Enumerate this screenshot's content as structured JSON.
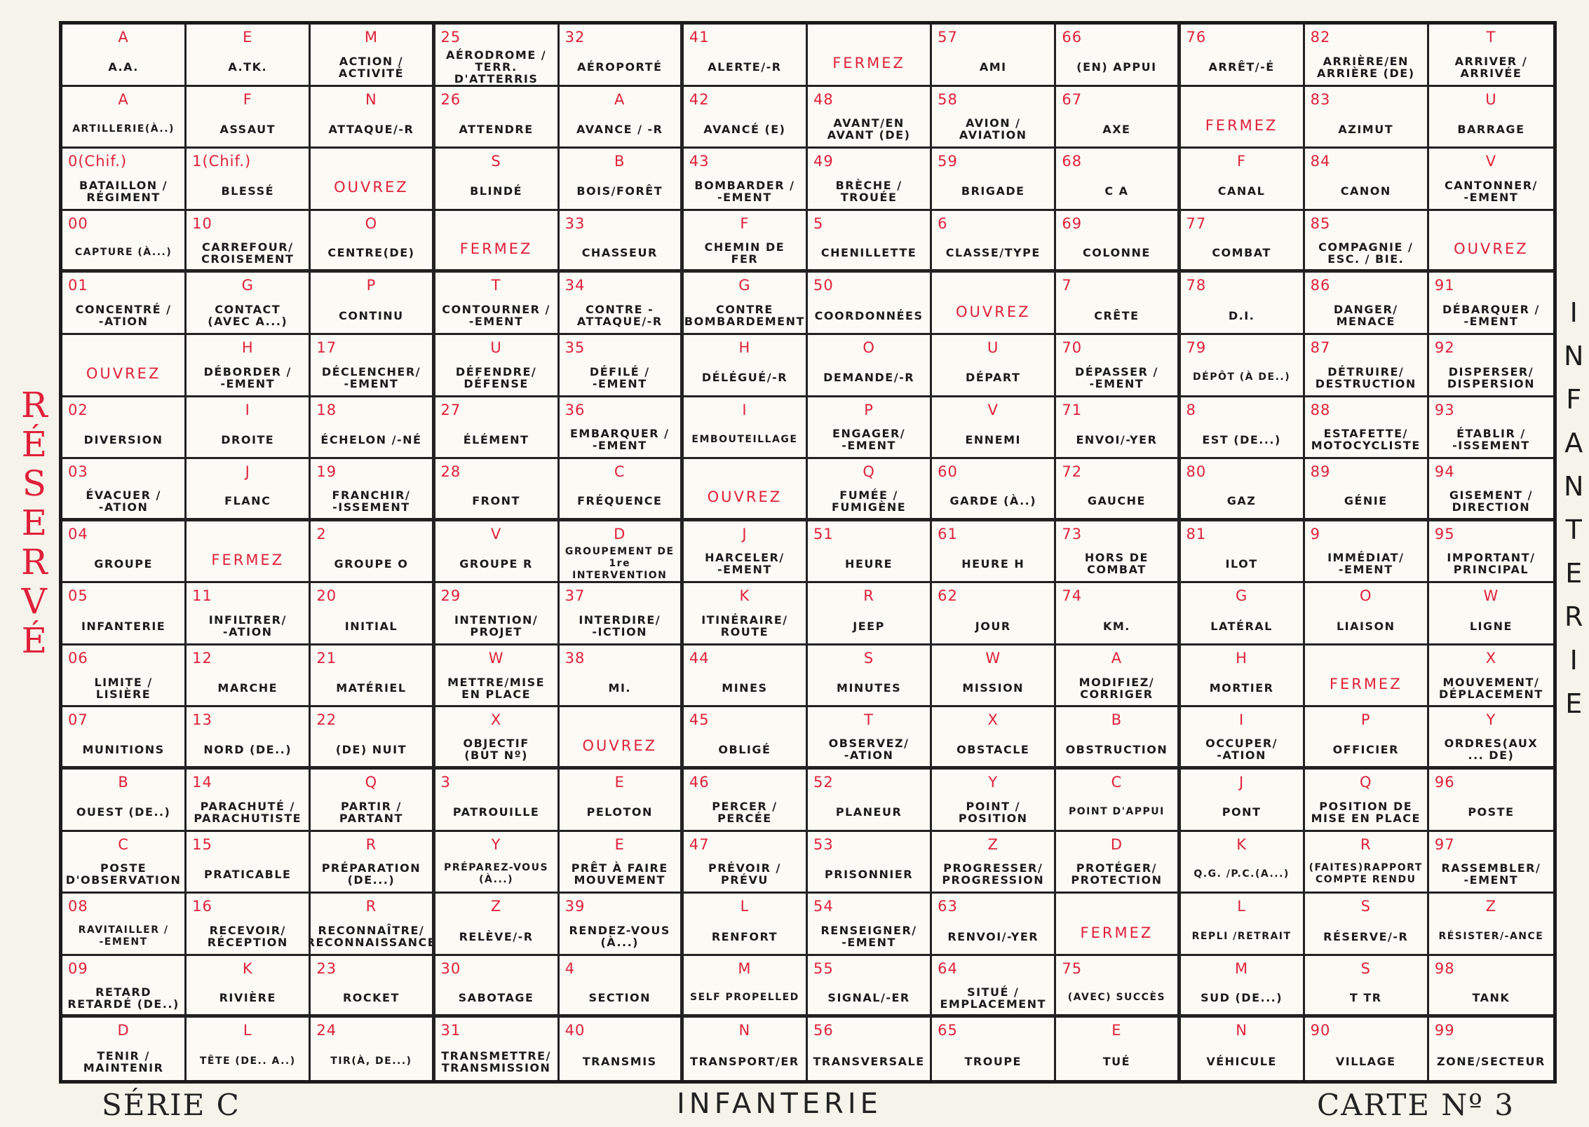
{
  "side_left": "RÉSERVÉ",
  "side_right": "INFANTERIE",
  "footer": {
    "serie": "SÉRIE C",
    "arm": "INFANTERIE",
    "card": "CARTE Nº 3"
  },
  "colors": {
    "code": "#e0203a",
    "text": "#1b1b1b",
    "paper": "#f6f3ea"
  },
  "rows": [
    [
      {
        "c": "A",
        "t": "A.A."
      },
      {
        "c": "E",
        "t": "A.TK."
      },
      {
        "c": "M",
        "t": "ACTION /\nACTIVITÉ"
      },
      {
        "c": "25",
        "t": "AÉRODROME /\nTERR. D'ATTERRIS"
      },
      {
        "c": "32",
        "t": "AÉROPORTÉ"
      },
      {
        "c": "41",
        "t": "ALERTE/-R"
      },
      {
        "r": "FERMEZ"
      },
      {
        "c": "57",
        "t": "AMI"
      },
      {
        "c": "66",
        "t": "(EN) APPUI"
      },
      {
        "c": "76",
        "t": "ARRÊT/-É"
      },
      {
        "c": "82",
        "t": "ARRIÈRE/EN\nARRIÈRE (DE)"
      },
      {
        "c": "T",
        "t": "ARRIVER /\nARRIVÉE"
      }
    ],
    [
      {
        "c": "A",
        "t": "ARTILLERIE(À..)"
      },
      {
        "c": "F",
        "t": "ASSAUT"
      },
      {
        "c": "N",
        "t": "ATTAQUE/-R"
      },
      {
        "c": "26",
        "t": "ATTENDRE"
      },
      {
        "c": "A",
        "t": "AVANCE / -R"
      },
      {
        "c": "42",
        "t": "AVANCÉ (E)"
      },
      {
        "c": "48",
        "t": "AVANT/EN\nAVANT (DE)"
      },
      {
        "c": "58",
        "t": "AVION /\nAVIATION"
      },
      {
        "c": "67",
        "t": "AXE"
      },
      {
        "r": "FERMEZ"
      },
      {
        "c": "83",
        "t": "AZIMUT"
      },
      {
        "c": "U",
        "t": "BARRAGE"
      }
    ],
    [
      {
        "c": "0(Chif.)",
        "t": "BATAILLON /\nRÉGIMENT"
      },
      {
        "c": "1(Chif.)",
        "t": "BLESSÉ"
      },
      {
        "r": "OUVREZ"
      },
      {
        "c": "S",
        "t": "BLINDÉ"
      },
      {
        "c": "B",
        "t": "BOIS/FORÊT"
      },
      {
        "c": "43",
        "t": "BOMBARDER /\n-EMENT"
      },
      {
        "c": "49",
        "t": "BRÈCHE /\nTROUÉE"
      },
      {
        "c": "59",
        "t": "BRIGADE"
      },
      {
        "c": "68",
        "t": "C A"
      },
      {
        "c": "F",
        "t": "CANAL"
      },
      {
        "c": "84",
        "t": "CANON"
      },
      {
        "c": "V",
        "t": "CANTONNER/\n-EMENT"
      }
    ],
    [
      {
        "c": "00",
        "t": "CAPTURE (À...)"
      },
      {
        "c": "10",
        "t": "CARREFOUR/\nCROISEMENT"
      },
      {
        "c": "O",
        "t": "CENTRE(DE)"
      },
      {
        "r": "FERMEZ"
      },
      {
        "c": "33",
        "t": "CHASSEUR"
      },
      {
        "c": "F",
        "t": "CHEMIN DE\nFER"
      },
      {
        "c": "5",
        "t": "CHENILLETTE"
      },
      {
        "c": "6",
        "t": "CLASSE/TYPE"
      },
      {
        "c": "69",
        "t": "COLONNE"
      },
      {
        "c": "77",
        "t": "COMBAT"
      },
      {
        "c": "85",
        "t": "COMPAGNIE /\nESC. / BIE."
      },
      {
        "r": "OUVREZ"
      }
    ],
    [
      {
        "c": "01",
        "t": "CONCENTRÉ /\n-ATION"
      },
      {
        "c": "G",
        "t": "CONTACT\n(AVEC A...)"
      },
      {
        "c": "P",
        "t": "CONTINU"
      },
      {
        "c": "T",
        "t": "CONTOURNER /\n-EMENT"
      },
      {
        "c": "34",
        "t": "CONTRE -\nATTAQUE/-R"
      },
      {
        "c": "G",
        "t": "CONTRE\nBOMBARDEMENT"
      },
      {
        "c": "50",
        "t": "COORDONNÉES"
      },
      {
        "r": "OUVREZ"
      },
      {
        "c": "7",
        "t": "CRÊTE"
      },
      {
        "c": "78",
        "t": "D.I."
      },
      {
        "c": "86",
        "t": "DANGER/\nMENACE"
      },
      {
        "c": "91",
        "t": "DÉBARQUER /\n-EMENT"
      }
    ],
    [
      {
        "r": "OUVREZ"
      },
      {
        "c": "H",
        "t": "DÉBORDER /\n-EMENT"
      },
      {
        "c": "17",
        "t": "DÉCLENCHER/\n-EMENT"
      },
      {
        "c": "U",
        "t": "DÉFENDRE/\nDÉFENSE"
      },
      {
        "c": "35",
        "t": "DÉFILÉ /\n-EMENT"
      },
      {
        "c": "H",
        "t": "DÉLÉGUÉ/-R"
      },
      {
        "c": "O",
        "t": "DEMANDE/-R"
      },
      {
        "c": "U",
        "t": "DÉPART"
      },
      {
        "c": "70",
        "t": "DÉPASSER /\n-EMENT"
      },
      {
        "c": "79",
        "t": "DÉPÔT (À DE..)"
      },
      {
        "c": "87",
        "t": "DÉTRUIRE/\nDESTRUCTION"
      },
      {
        "c": "92",
        "t": "DISPERSER/\nDISPERSION"
      }
    ],
    [
      {
        "c": "02",
        "t": "DIVERSION"
      },
      {
        "c": "I",
        "t": "DROITE"
      },
      {
        "c": "18",
        "t": "ÉCHELON /-NÉ"
      },
      {
        "c": "27",
        "t": "ÉLÉMENT"
      },
      {
        "c": "36",
        "t": "EMBARQUER /\n-EMENT"
      },
      {
        "c": "I",
        "t": "EMBOUTEILLAGE"
      },
      {
        "c": "P",
        "t": "ENGAGER/\n-EMENT"
      },
      {
        "c": "V",
        "t": "ENNEMI"
      },
      {
        "c": "71",
        "t": "ENVOI/-YER"
      },
      {
        "c": "8",
        "t": "EST (DE...)"
      },
      {
        "c": "88",
        "t": "ESTAFETTE/\nMOTOCYCLISTE"
      },
      {
        "c": "93",
        "t": "ÉTABLIR /\n-ISSEMENT"
      }
    ],
    [
      {
        "c": "03",
        "t": "ÉVACUER /\n-ATION"
      },
      {
        "c": "J",
        "t": "FLANC"
      },
      {
        "c": "19",
        "t": "FRANCHIR/\n-ISSEMENT"
      },
      {
        "c": "28",
        "t": "FRONT"
      },
      {
        "c": "C",
        "t": "FRÉQUENCE"
      },
      {
        "r": "OUVREZ"
      },
      {
        "c": "Q",
        "t": "FUMÉE /\nFUMIGÈNE"
      },
      {
        "c": "60",
        "t": "GARDE (À..)"
      },
      {
        "c": "72",
        "t": "GAUCHE"
      },
      {
        "c": "80",
        "t": "GAZ"
      },
      {
        "c": "89",
        "t": "GÉNIE"
      },
      {
        "c": "94",
        "t": "GISEMENT /\nDIRECTION"
      }
    ],
    [
      {
        "c": "04",
        "t": "GROUPE"
      },
      {
        "r": "FERMEZ"
      },
      {
        "c": "2",
        "t": "GROUPE O"
      },
      {
        "c": "V",
        "t": "GROUPE R"
      },
      {
        "c": "D",
        "t": "GROUPEMENT DE\n1re INTERVENTION"
      },
      {
        "c": "J",
        "t": "HARCELER/\n-EMENT"
      },
      {
        "c": "51",
        "t": "HEURE"
      },
      {
        "c": "61",
        "t": "HEURE H"
      },
      {
        "c": "73",
        "t": "HORS DE\nCOMBAT"
      },
      {
        "c": "81",
        "t": "ILOT"
      },
      {
        "c": "9",
        "t": "IMMÉDIAT/\n-EMENT"
      },
      {
        "c": "95",
        "t": "IMPORTANT/\nPRINCIPAL"
      }
    ],
    [
      {
        "c": "05",
        "t": "INFANTERIE"
      },
      {
        "c": "11",
        "t": "INFILTRER/\n-ATION"
      },
      {
        "c": "20",
        "t": "INITIAL"
      },
      {
        "c": "29",
        "t": "INTENTION/\nPROJET"
      },
      {
        "c": "37",
        "t": "INTERDIRE/\n-ICTION"
      },
      {
        "c": "K",
        "t": "ITINÉRAIRE/\nROUTE"
      },
      {
        "c": "R",
        "t": "JEEP"
      },
      {
        "c": "62",
        "t": "JOUR"
      },
      {
        "c": "74",
        "t": "KM."
      },
      {
        "c": "G",
        "t": "LATÉRAL"
      },
      {
        "c": "O",
        "t": "LIAISON"
      },
      {
        "c": "W",
        "t": "LIGNE"
      }
    ],
    [
      {
        "c": "06",
        "t": "LIMITE /\nLISIÈRE"
      },
      {
        "c": "12",
        "t": "MARCHE"
      },
      {
        "c": "21",
        "t": "MATÉRIEL"
      },
      {
        "c": "W",
        "t": "METTRE/MISE\nEN PLACE"
      },
      {
        "c": "38",
        "t": "MI."
      },
      {
        "c": "44",
        "t": "MINES"
      },
      {
        "c": "S",
        "t": "MINUTES"
      },
      {
        "c": "W",
        "t": "MISSION"
      },
      {
        "c": "A",
        "t": "MODIFIEZ/\nCORRIGER"
      },
      {
        "c": "H",
        "t": "MORTIER"
      },
      {
        "r": "FERMEZ"
      },
      {
        "c": "X",
        "t": "MOUVEMENT/\nDÉPLACEMENT"
      }
    ],
    [
      {
        "c": "07",
        "t": "MUNITIONS"
      },
      {
        "c": "13",
        "t": "NORD (DE..)"
      },
      {
        "c": "22",
        "t": "(DE) NUIT"
      },
      {
        "c": "X",
        "t": "OBJECTIF\n(BUT Nº)"
      },
      {
        "r": "OUVREZ"
      },
      {
        "c": "45",
        "t": "OBLIGÉ"
      },
      {
        "c": "T",
        "t": "OBSERVEZ/\n-ATION"
      },
      {
        "c": "X",
        "t": "OBSTACLE"
      },
      {
        "c": "B",
        "t": "OBSTRUCTION"
      },
      {
        "c": "I",
        "t": "OCCUPER/\n-ATION"
      },
      {
        "c": "P",
        "t": "OFFICIER"
      },
      {
        "c": "Y",
        "t": "ORDRES(AUX\n... DE)"
      }
    ],
    [
      {
        "c": "B",
        "t": "OUEST (DE..)"
      },
      {
        "c": "14",
        "t": "PARACHUTÉ /\nPARACHUTISTE"
      },
      {
        "c": "Q",
        "t": "PARTIR /\nPARTANT"
      },
      {
        "c": "3",
        "t": "PATROUILLE"
      },
      {
        "c": "E",
        "t": "PELOTON"
      },
      {
        "c": "46",
        "t": "PERCER /\nPERCÉE"
      },
      {
        "c": "52",
        "t": "PLANEUR"
      },
      {
        "c": "Y",
        "t": "POINT /\nPOSITION"
      },
      {
        "c": "C",
        "t": "POINT D'APPUI"
      },
      {
        "c": "J",
        "t": "PONT"
      },
      {
        "c": "Q",
        "t": "POSITION DE\nMISE EN PLACE"
      },
      {
        "c": "96",
        "t": "POSTE"
      }
    ],
    [
      {
        "c": "C",
        "t": "POSTE\nD'OBSERVATION"
      },
      {
        "c": "15",
        "t": "PRATICABLE"
      },
      {
        "c": "R",
        "t": "PRÉPARATION\n(DE...)"
      },
      {
        "c": "Y",
        "t": "PRÉPAREZ-VOUS\n(À...)"
      },
      {
        "c": "E",
        "t": "PRÊT À FAIRE\nMOUVEMENT"
      },
      {
        "c": "47",
        "t": "PRÉVOIR /\nPRÉVU"
      },
      {
        "c": "53",
        "t": "PRISONNIER"
      },
      {
        "c": "Z",
        "t": "PROGRESSER/\nPROGRESSION"
      },
      {
        "c": "D",
        "t": "PROTÉGER/\nPROTECTION"
      },
      {
        "c": "K",
        "t": "Q.G. /P.C.(A...)"
      },
      {
        "c": "R",
        "t": "(FAITES)RAPPORT\nCOMPTE RENDU"
      },
      {
        "c": "97",
        "t": "RASSEMBLER/\n-EMENT"
      }
    ],
    [
      {
        "c": "08",
        "t": "RAVITAILLER /\n-EMENT"
      },
      {
        "c": "16",
        "t": "RECEVOIR/\nRÉCEPTION"
      },
      {
        "c": "R",
        "t": "RECONNAÎTRE/\nRECONNAISSANCE"
      },
      {
        "c": "Z",
        "t": "RELÈVE/-R"
      },
      {
        "c": "39",
        "t": "RENDEZ-VOUS\n(À...)"
      },
      {
        "c": "L",
        "t": "RENFORT"
      },
      {
        "c": "54",
        "t": "RENSEIGNER/\n-EMENT"
      },
      {
        "c": "63",
        "t": "RENVOI/-YER"
      },
      {
        "r": "FERMEZ"
      },
      {
        "c": "L",
        "t": "REPLI /RETRAIT"
      },
      {
        "c": "S",
        "t": "RÉSERVE/-R"
      },
      {
        "c": "Z",
        "t": "RÉSISTER/-ANCE"
      }
    ],
    [
      {
        "c": "09",
        "t": "RETARD\nRETARDÉ (DE..)"
      },
      {
        "c": "K",
        "t": "RIVIÈRE"
      },
      {
        "c": "23",
        "t": "ROCKET"
      },
      {
        "c": "30",
        "t": "SABOTAGE"
      },
      {
        "c": "4",
        "t": "SECTION"
      },
      {
        "c": "M",
        "t": "SELF PROPELLED"
      },
      {
        "c": "55",
        "t": "SIGNAL/-ER"
      },
      {
        "c": "64",
        "t": "SITUÉ /\nEMPLACEMENT"
      },
      {
        "c": "75",
        "t": "(AVEC) SUCCÈS"
      },
      {
        "c": "M",
        "t": "SUD (DE...)"
      },
      {
        "c": "S",
        "t": "T TR"
      },
      {
        "c": "98",
        "t": "TANK"
      }
    ],
    [
      {
        "c": "D",
        "t": "TENIR /\nMAINTENIR"
      },
      {
        "c": "L",
        "t": "TÊTE (DE.. A..)"
      },
      {
        "c": "24",
        "t": "TIR(À, DE...)"
      },
      {
        "c": "31",
        "t": "TRANSMETTRE/\nTRANSMISSION"
      },
      {
        "c": "40",
        "t": "TRANSMIS"
      },
      {
        "c": "N",
        "t": "TRANSPORT/ER"
      },
      {
        "c": "56",
        "t": "TRANSVERSALE"
      },
      {
        "c": "65",
        "t": "TROUPE"
      },
      {
        "c": "E",
        "t": "TUÉ"
      },
      {
        "c": "N",
        "t": "VÉHICULE"
      },
      {
        "c": "90",
        "t": "VILLAGE"
      },
      {
        "c": "99",
        "t": "ZONE/SECTEUR"
      }
    ]
  ]
}
